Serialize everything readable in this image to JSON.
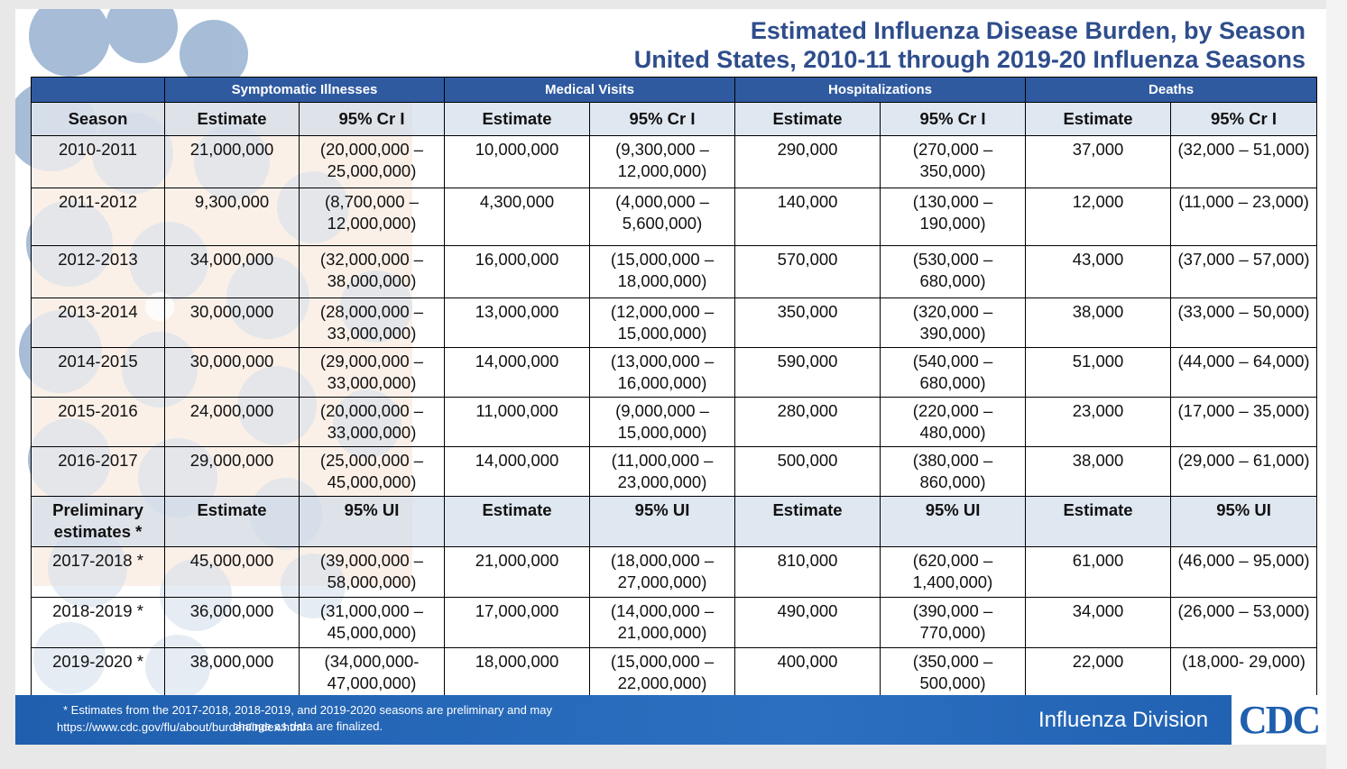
{
  "title": [
    "Estimated Influenza Disease Burden, by Season",
    "United States, 2010-11 through 2019-20 Influenza Seasons"
  ],
  "table": {
    "groups": [
      "Symptomatic Illnesses",
      "Medical Visits",
      "Hospitalizations",
      "Deaths"
    ],
    "columns": [
      "Season",
      "Estimate",
      "95% Cr I",
      "Estimate",
      "95% Cr I",
      "Estimate",
      "95% Cr I",
      "Estimate",
      "95% Cr I"
    ],
    "rows": [
      [
        "2010-2011",
        "21,000,000",
        "(20,000,000 – 25,000,000)",
        "10,000,000",
        "(9,300,000 – 12,000,000)",
        "290,000",
        "(270,000 – 350,000)",
        "37,000",
        "(32,000 – 51,000)"
      ],
      [
        "2011-2012",
        "9,300,000",
        "(8,700,000 – 12,000,000)",
        "4,300,000",
        "(4,000,000 – 5,600,000)",
        "140,000",
        "(130,000 – 190,000)",
        "12,000",
        "(11,000 – 23,000)"
      ],
      [
        "2012-2013",
        "34,000,000",
        "(32,000,000 – 38,000,000)",
        "16,000,000",
        "(15,000,000 – 18,000,000)",
        "570,000",
        "(530,000 – 680,000)",
        "43,000",
        "(37,000 – 57,000)"
      ],
      [
        "2013-2014",
        "30,000,000",
        "(28,000,000 – 33,000,000)",
        "13,000,000",
        "(12,000,000 – 15,000,000)",
        "350,000",
        "(320,000 – 390,000)",
        "38,000",
        "(33,000 – 50,000)"
      ],
      [
        "2014-2015",
        "30,000,000",
        "(29,000,000 – 33,000,000)",
        "14,000,000",
        "(13,000,000 – 16,000,000)",
        "590,000",
        "(540,000 – 680,000)",
        "51,000",
        "(44,000 – 64,000)"
      ],
      [
        "2015-2016",
        "24,000,000",
        "(20,000,000 – 33,000,000)",
        "11,000,000",
        "(9,000,000 – 15,000,000)",
        "280,000",
        "(220,000 – 480,000)",
        "23,000",
        "(17,000 – 35,000)"
      ],
      [
        "2016-2017",
        "29,000,000",
        "(25,000,000 – 45,000,000)",
        "14,000,000",
        "(11,000,000 – 23,000,000)",
        "500,000",
        "(380,000 – 860,000)",
        "38,000",
        "(29,000 – 61,000)"
      ]
    ],
    "preliminary_header": [
      "Preliminary estimates *",
      "Estimate",
      "95% UI",
      "Estimate",
      "95% UI",
      "Estimate",
      "95% UI",
      "Estimate",
      "95% UI"
    ],
    "preliminary_rows": [
      [
        "2017-2018 *",
        "45,000,000",
        "(39,000,000 – 58,000,000)",
        "21,000,000",
        "(18,000,000 – 27,000,000)",
        "810,000",
        "(620,000 – 1,400,000)",
        "61,000",
        "(46,000 – 95,000)"
      ],
      [
        "2018-2019 *",
        "36,000,000",
        "(31,000,000 – 45,000,000)",
        "17,000,000",
        "(14,000,000 – 21,000,000)",
        "490,000",
        "(390,000 – 770,000)",
        "34,000",
        "(26,000 – 53,000)"
      ],
      [
        "2019-2020 *",
        "38,000,000",
        "(34,000,000- 47,000,000)",
        "18,000,000",
        "(15,000,000 – 22,000,000)",
        "400,000",
        "(350,000 – 500,000)",
        "22,000",
        "(18,000- 29,000)"
      ]
    ]
  },
  "footer": {
    "note": "* Estimates from the 2017-2018, 2018-2019, and 2019-2020 seasons are preliminary and may change as data are finalized.",
    "url": "https://www.cdc.gov/flu/about/burden/index.html",
    "division": "Influenza Division",
    "logo": "CDC"
  }
}
